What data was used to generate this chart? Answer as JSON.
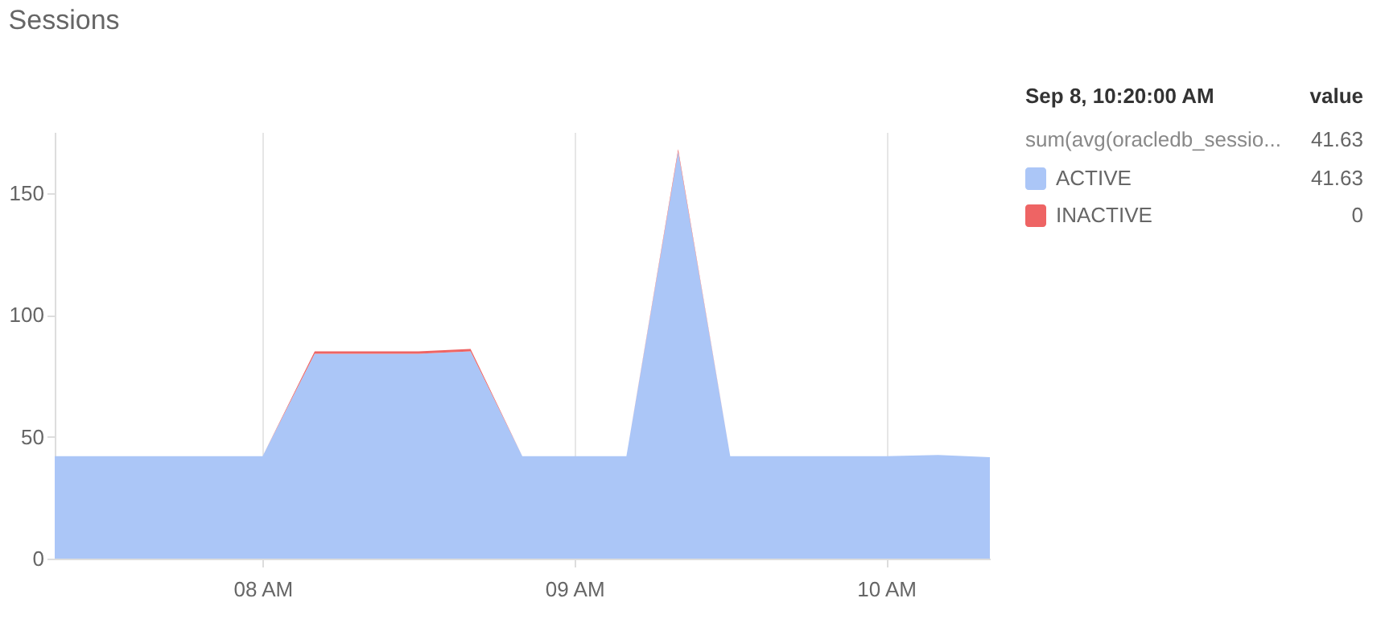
{
  "chart_data": {
    "type": "area",
    "title": "Sessions",
    "stacked": true,
    "x": [
      7.333,
      7.5,
      7.667,
      7.833,
      8,
      8.167,
      8.333,
      8.5,
      8.667,
      8.833,
      9,
      9.167,
      9.333,
      9.5,
      9.667,
      9.833,
      10,
      10.167,
      10.333
    ],
    "series": [
      {
        "name": "ACTIVE",
        "color": "#abc6f7",
        "values": [
          42,
          42,
          42,
          42,
          42,
          84,
          84,
          84,
          85,
          42,
          42,
          42,
          167,
          42,
          42,
          42,
          42,
          42.5,
          41.63
        ]
      },
      {
        "name": "INACTIVE",
        "color": "#ee6464",
        "values": [
          0,
          0,
          0,
          0,
          0,
          1,
          1,
          1,
          1,
          0,
          0,
          0,
          1,
          0,
          0,
          0,
          0,
          0,
          0
        ]
      }
    ],
    "xlim": [
      7.333,
      10.333
    ],
    "xticks": [
      {
        "value": 8,
        "label": "08 AM"
      },
      {
        "value": 9,
        "label": "09 AM"
      },
      {
        "value": 10,
        "label": "10 AM"
      }
    ],
    "ylim": [
      0,
      175
    ],
    "yticks": [
      0,
      50,
      100,
      150
    ],
    "grid": "x",
    "legend": "right",
    "legend_title": "Sep 8, 10:20:00 AM",
    "annotations": [
      "value",
      "sum(avg(oracledb_sessio...",
      "41.63",
      "41.63",
      "0"
    ]
  }
}
